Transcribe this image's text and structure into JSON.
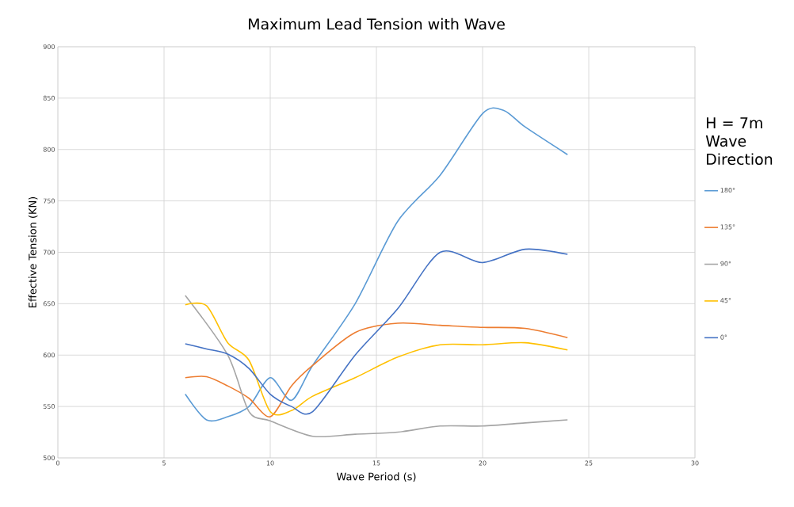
{
  "chart_data": {
    "type": "line",
    "title": "Maximum Lead Tension with Wave",
    "xlabel": "Wave Period (s)",
    "ylabel": "Effective Tension (KN)",
    "legend_title": "H = 7m Wave Direction",
    "xlim": [
      0,
      30
    ],
    "xticks": [
      0,
      5,
      10,
      15,
      20,
      25,
      30
    ],
    "ylim": [
      500,
      900
    ],
    "yticks": [
      500,
      550,
      600,
      650,
      700,
      750,
      800,
      850,
      900
    ],
    "grid": true,
    "legend": "right",
    "marker": "none",
    "line_style": "solid",
    "series": [
      {
        "name": "180°",
        "color": "#5b9bd5",
        "x": [
          6,
          7,
          8,
          9,
          10,
          11,
          12,
          14,
          16,
          18,
          20,
          21,
          22,
          24
        ],
        "values": [
          562,
          537,
          540,
          550,
          578,
          556,
          590,
          650,
          730,
          775,
          835,
          838,
          822,
          795
        ]
      },
      {
        "name": "135°",
        "color": "#ed7d31",
        "x": [
          6,
          7,
          8,
          9,
          10,
          11,
          12,
          14,
          16,
          18,
          20,
          22,
          24
        ],
        "values": [
          578,
          579,
          570,
          558,
          540,
          570,
          590,
          622,
          631,
          629,
          627,
          626,
          617
        ]
      },
      {
        "name": "90°",
        "color": "#a5a5a5",
        "x": [
          6,
          8,
          9,
          10,
          12,
          14,
          16,
          18,
          20,
          22,
          24
        ],
        "values": [
          658,
          600,
          545,
          536,
          521,
          523,
          525,
          531,
          531,
          534,
          537
        ]
      },
      {
        "name": "45°",
        "color": "#ffc000",
        "x": [
          6,
          7,
          8,
          9,
          10,
          11,
          12,
          14,
          16,
          18,
          20,
          22,
          24
        ],
        "values": [
          649,
          648,
          612,
          595,
          545,
          546,
          560,
          578,
          598,
          610,
          610,
          612,
          605
        ]
      },
      {
        "name": "0°",
        "color": "#4472c4",
        "x": [
          6,
          7,
          8,
          9,
          10,
          11,
          12,
          14,
          16,
          18,
          20,
          22,
          24
        ],
        "values": [
          611,
          606,
          601,
          587,
          562,
          550,
          545,
          600,
          645,
          700,
          690,
          703,
          698
        ]
      }
    ]
  }
}
